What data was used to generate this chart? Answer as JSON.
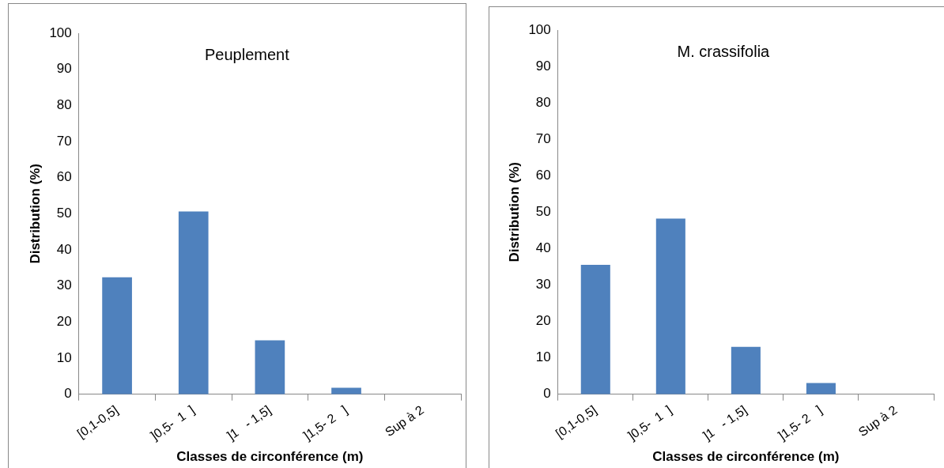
{
  "chart_data": [
    {
      "type": "bar",
      "title": "Peuplement",
      "xlabel": "Classes de circonférence (m)",
      "ylabel": "Distribution (%)",
      "categories": [
        "[0,1-0,5]",
        "]0,5-  1  ]",
        "]1   - 1,5]",
        "]1,5- 2   ]",
        "Sup à 2"
      ],
      "values": [
        32.4,
        50.6,
        14.9,
        1.8,
        0
      ],
      "color": "#4f81bd",
      "ylim": [
        0,
        100
      ],
      "yticks": [
        0,
        10,
        20,
        30,
        40,
        50,
        60,
        70,
        80,
        90,
        100
      ],
      "grid": false
    },
    {
      "type": "bar",
      "title": "M. crassifolia",
      "xlabel": "Classes de circonférence (m)",
      "ylabel": "Distribution (%)",
      "categories": [
        "[0,1-0,5]",
        "]0,5-  1  ]",
        "]1   - 1,5]",
        "]1,5- 2   ]",
        "Sup à 2"
      ],
      "values": [
        35.5,
        48.2,
        13,
        3.1,
        0
      ],
      "color": "#4f81bd",
      "ylim": [
        0,
        100
      ],
      "yticks": [
        0,
        10,
        20,
        30,
        40,
        50,
        60,
        70,
        80,
        90,
        100
      ],
      "grid": false
    }
  ]
}
